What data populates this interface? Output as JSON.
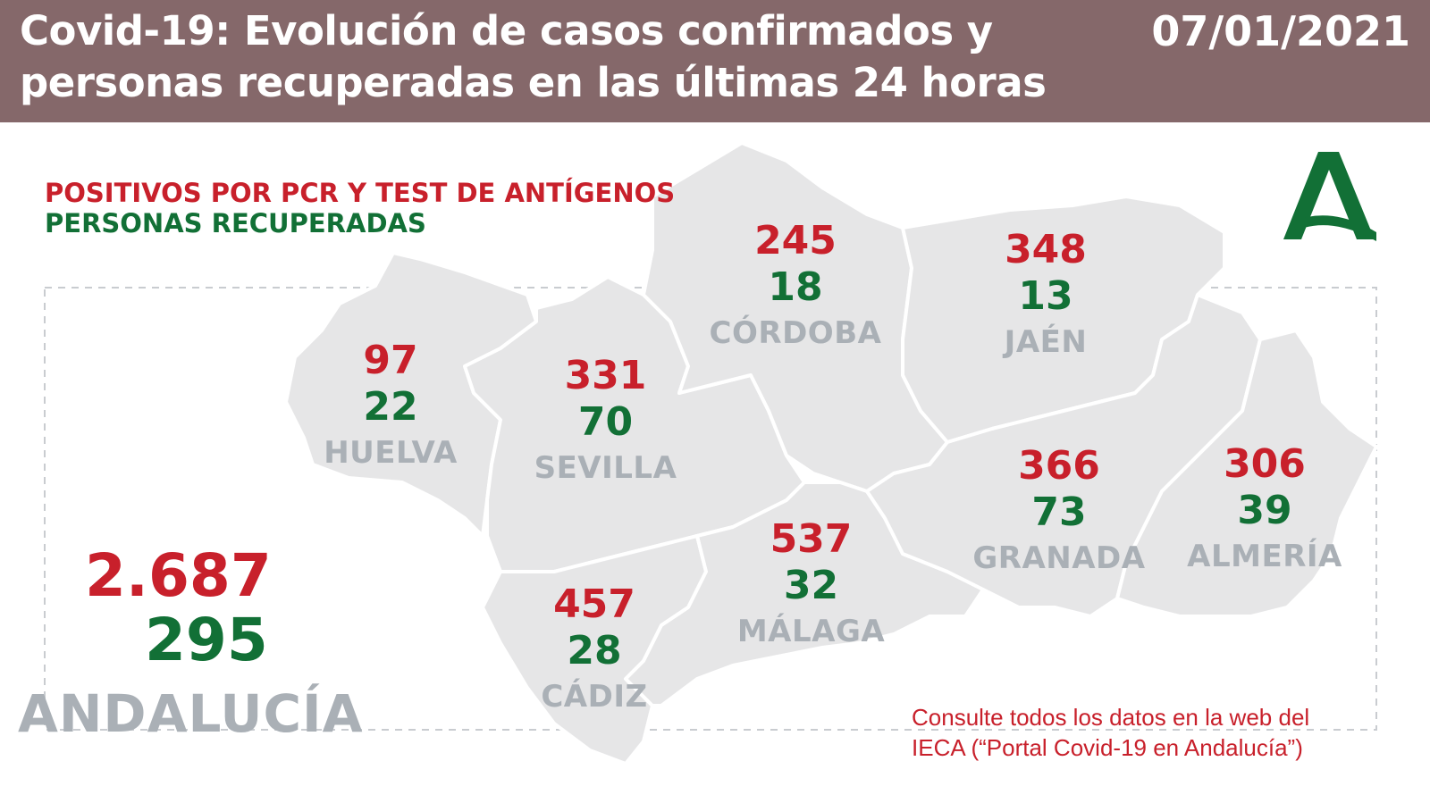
{
  "header": {
    "title_line1": "Covid-19: Evolución de casos confirmados y",
    "title_line2": "personas recuperadas en las últimas 24 horas",
    "date": "07/01/2021"
  },
  "legend": {
    "positives": "POSITIVOS POR PCR Y TEST DE ANTÍGENOS",
    "recovered": "PERSONAS RECUPERADAS"
  },
  "provinces": [
    {
      "name": "HUELVA",
      "positives": "97",
      "recovered": "22"
    },
    {
      "name": "SEVILLA",
      "positives": "331",
      "recovered": "70"
    },
    {
      "name": "CÓRDOBA",
      "positives": "245",
      "recovered": "18"
    },
    {
      "name": "JAÉN",
      "positives": "348",
      "recovered": "13"
    },
    {
      "name": "CÁDIZ",
      "positives": "457",
      "recovered": "28"
    },
    {
      "name": "MÁLAGA",
      "positives": "537",
      "recovered": "32"
    },
    {
      "name": "GRANADA",
      "positives": "366",
      "recovered": "73"
    },
    {
      "name": "ALMERÍA",
      "positives": "306",
      "recovered": "39"
    }
  ],
  "total": {
    "name": "ANDALUCÍA",
    "positives": "2.687",
    "recovered": "295"
  },
  "footnote": {
    "line1": "Consulte todos los datos en la web del",
    "line2": "IECA (“Portal Covid-19 en Andalucía”)"
  },
  "colors": {
    "header_bg": "#85686a",
    "positives": "#c8202b",
    "recovered": "#127036",
    "region_fill": "#e6e6e7",
    "region_border": "#ffffff",
    "label_grey": "#aab0b6",
    "logo_green": "#127036"
  },
  "icons": {
    "logo": "junta-de-andalucia-logo"
  }
}
